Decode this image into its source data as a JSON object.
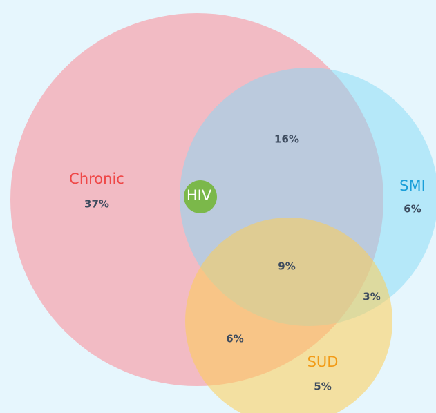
{
  "chart_data": {
    "type": "venn",
    "sets": [
      {
        "name": "Chronic",
        "color": "#f7a3ad",
        "label_color": "#ef4747",
        "value": 37,
        "value_label": "37%"
      },
      {
        "name": "SMI",
        "color": "#83d9f6",
        "label_color": "#1a9fd9",
        "value": 6,
        "value_label": "6%"
      },
      {
        "name": "SUD",
        "color": "#fdcd55",
        "label_color": "#f29b17"
      },
      {
        "name": "HIV",
        "color": "#7bb84a",
        "label_color": "#ffffff"
      }
    ],
    "sud_value": 5,
    "sud_value_label": "5%",
    "regions": [
      {
        "value": 16,
        "value_label": "16%"
      },
      {
        "value": 9,
        "value_label": "9%"
      },
      {
        "value": 3,
        "value_label": "3%"
      },
      {
        "value": 6,
        "value_label": "6%"
      }
    ]
  }
}
